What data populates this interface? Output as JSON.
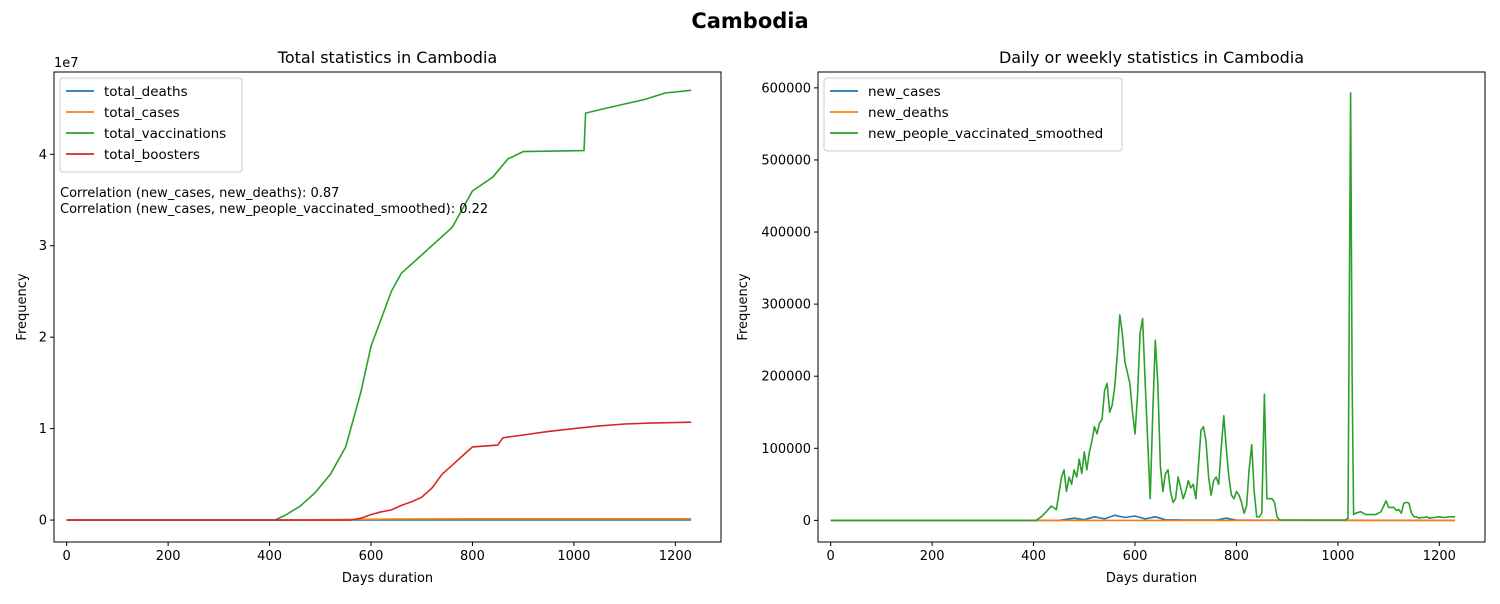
{
  "figure": {
    "title": "Cambodia"
  },
  "annotations": [
    "Correlation (new_cases, new_deaths): 0.87",
    "Correlation (new_cases, new_people_vaccinated_smoothed): 0.22"
  ],
  "chart_data": [
    {
      "type": "line",
      "title": "Total statistics in Cambodia",
      "xlabel": "Days duration",
      "ylabel": "Frequency",
      "y_offset_label": "1e7",
      "xlim": [
        -25,
        1290
      ],
      "ylim": [
        -2400000,
        49000000
      ],
      "xticks": [
        0,
        200,
        400,
        600,
        800,
        1000,
        1200
      ],
      "yticks": [
        0,
        10000000,
        20000000,
        30000000,
        40000000
      ],
      "ytick_labels": [
        "0",
        "1",
        "2",
        "3",
        "4"
      ],
      "legend_position": "upper-left",
      "grid": false,
      "series": [
        {
          "name": "total_deaths",
          "color": "#1f77b4",
          "x": [
            0,
            400,
            600,
            800,
            1000,
            1231
          ],
          "y": [
            0,
            0,
            2800,
            3050,
            3056,
            3056
          ]
        },
        {
          "name": "total_cases",
          "color": "#ff7f0e",
          "x": [
            0,
            400,
            450,
            550,
            650,
            800,
            1000,
            1231
          ],
          "y": [
            0,
            500,
            5000,
            70000,
            110000,
            136000,
            138000,
            139000
          ]
        },
        {
          "name": "total_vaccinations",
          "color": "#2ca02c",
          "x": [
            0,
            410,
            430,
            460,
            490,
            520,
            550,
            580,
            600,
            620,
            640,
            660,
            690,
            720,
            760,
            780,
            800,
            840,
            870,
            900,
            1020,
            1023,
            1060,
            1100,
            1140,
            1180,
            1231
          ],
          "y": [
            0,
            0,
            500000,
            1500000,
            3000000,
            5000000,
            8000000,
            14000000,
            19000000,
            22000000,
            25000000,
            27000000,
            28500000,
            30000000,
            32000000,
            34000000,
            36000000,
            37500000,
            39500000,
            40300000,
            40400000,
            44500000,
            45000000,
            45500000,
            46000000,
            46700000,
            47000000
          ]
        },
        {
          "name": "total_boosters",
          "color": "#d62728",
          "x": [
            0,
            560,
            580,
            600,
            620,
            640,
            660,
            680,
            700,
            720,
            740,
            760,
            780,
            800,
            850,
            860,
            900,
            950,
            1000,
            1050,
            1100,
            1150,
            1231
          ],
          "y": [
            0,
            0,
            200000,
            600000,
            900000,
            1100000,
            1600000,
            2000000,
            2500000,
            3500000,
            5000000,
            6000000,
            7000000,
            8000000,
            8200000,
            9000000,
            9300000,
            9700000,
            10000000,
            10300000,
            10500000,
            10600000,
            10700000
          ]
        }
      ]
    },
    {
      "type": "line",
      "title": "Daily or weekly statistics in Cambodia",
      "xlabel": "Days duration",
      "ylabel": "Frequency",
      "xlim": [
        -25,
        1290
      ],
      "ylim": [
        -30000,
        622000
      ],
      "xticks": [
        0,
        200,
        400,
        600,
        800,
        1000,
        1200
      ],
      "yticks": [
        0,
        100000,
        200000,
        300000,
        400000,
        500000,
        600000
      ],
      "ytick_labels": [
        "0",
        "100000",
        "200000",
        "300000",
        "400000",
        "500000",
        "600000"
      ],
      "legend_position": "upper-left",
      "grid": false,
      "series": [
        {
          "name": "new_cases",
          "color": "#1f77b4",
          "x": [
            0,
            450,
            480,
            500,
            520,
            540,
            560,
            580,
            600,
            620,
            640,
            660,
            700,
            760,
            780,
            800,
            1231
          ],
          "y": [
            0,
            0,
            3000,
            1000,
            5000,
            2000,
            7000,
            4000,
            6000,
            2000,
            5000,
            1000,
            500,
            500,
            3000,
            300,
            0
          ]
        },
        {
          "name": "new_deaths",
          "color": "#ff7f0e",
          "x": [
            0,
            1231
          ],
          "y": [
            0,
            0
          ]
        },
        {
          "name": "new_people_vaccinated_smoothed",
          "color": "#2ca02c",
          "x": [
            0,
            405,
            415,
            425,
            435,
            445,
            455,
            460,
            465,
            470,
            475,
            480,
            485,
            490,
            495,
            500,
            505,
            510,
            515,
            520,
            525,
            530,
            535,
            540,
            545,
            550,
            555,
            560,
            565,
            570,
            575,
            580,
            585,
            590,
            595,
            600,
            605,
            610,
            615,
            620,
            625,
            630,
            635,
            640,
            645,
            650,
            655,
            660,
            665,
            670,
            675,
            680,
            685,
            690,
            695,
            700,
            705,
            710,
            715,
            720,
            725,
            730,
            735,
            740,
            745,
            750,
            755,
            760,
            765,
            770,
            775,
            780,
            785,
            790,
            795,
            800,
            805,
            810,
            815,
            820,
            825,
            830,
            835,
            840,
            845,
            850,
            855,
            860,
            865,
            870,
            875,
            880,
            885,
            890,
            895,
            900,
            1015,
            1020,
            1025,
            1028,
            1031,
            1035,
            1045,
            1055,
            1060,
            1065,
            1075,
            1085,
            1095,
            1100,
            1105,
            1110,
            1115,
            1120,
            1125,
            1130,
            1135,
            1140,
            1145,
            1150,
            1155,
            1160,
            1165,
            1170,
            1175,
            1180,
            1190,
            1200,
            1210,
            1220,
            1231
          ],
          "y": [
            0,
            0,
            5000,
            12000,
            20000,
            15000,
            60000,
            70000,
            40000,
            60000,
            50000,
            70000,
            60000,
            85000,
            65000,
            95000,
            70000,
            95000,
            110000,
            130000,
            120000,
            135000,
            140000,
            180000,
            190000,
            150000,
            160000,
            185000,
            230000,
            285000,
            260000,
            220000,
            205000,
            190000,
            150000,
            120000,
            175000,
            260000,
            280000,
            190000,
            110000,
            30000,
            150000,
            250000,
            190000,
            75000,
            40000,
            65000,
            70000,
            40000,
            25000,
            30000,
            60000,
            45000,
            30000,
            40000,
            55000,
            45000,
            50000,
            30000,
            75000,
            125000,
            130000,
            110000,
            60000,
            35000,
            55000,
            60000,
            50000,
            100000,
            145000,
            100000,
            60000,
            35000,
            30000,
            40000,
            35000,
            25000,
            10000,
            20000,
            70000,
            105000,
            40000,
            5000,
            5000,
            10000,
            175000,
            30000,
            30000,
            30000,
            25000,
            5000,
            500,
            500,
            500,
            500,
            500,
            3000,
            593000,
            200000,
            8000,
            10000,
            12000,
            8000,
            8000,
            8000,
            8000,
            12000,
            27000,
            18000,
            18000,
            18000,
            14000,
            15000,
            10000,
            24000,
            25000,
            24000,
            10000,
            5000,
            5000,
            3000,
            4000,
            4000,
            5000,
            3000,
            4000,
            5000,
            4000,
            5000,
            5000
          ]
        }
      ]
    }
  ]
}
